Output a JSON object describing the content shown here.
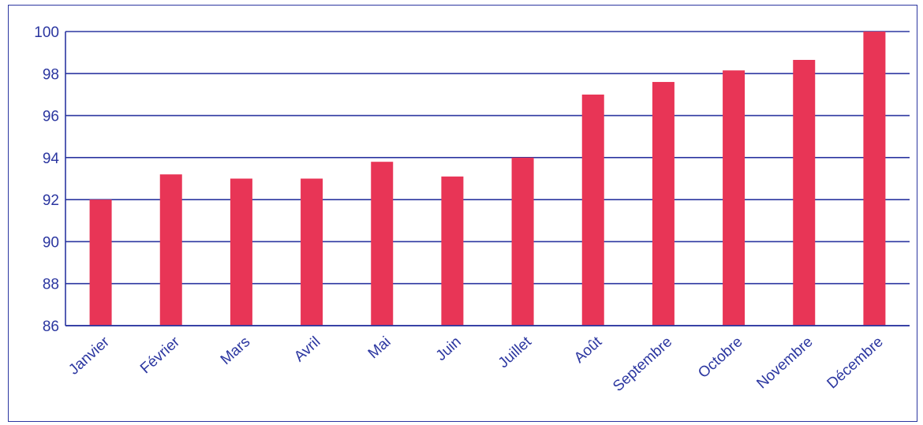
{
  "chart_data": {
    "type": "bar",
    "title": "",
    "xlabel": "",
    "ylabel": "",
    "categories": [
      "Janvier",
      "Février",
      "Mars",
      "Avril",
      "Mai",
      "Juin",
      "Juillet",
      "Août",
      "Septembre",
      "Octobre",
      "Novembre",
      "Décembre"
    ],
    "values": [
      92.0,
      93.2,
      93.0,
      93.0,
      93.8,
      93.1,
      94.0,
      97.0,
      97.6,
      98.15,
      98.65,
      100.0
    ],
    "ylim": [
      86,
      100
    ],
    "yticks": [
      "86",
      "88",
      "90",
      "92",
      "94",
      "96",
      "98",
      "100"
    ],
    "grid": true,
    "legend": "none",
    "colors": {
      "bar": "#e83556",
      "axis": "#2b36a0",
      "text": "#2b36a0",
      "frame": "#2b36a0"
    }
  }
}
